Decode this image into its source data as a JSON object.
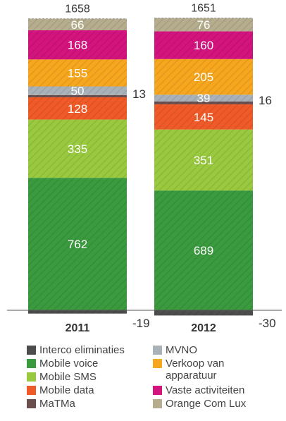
{
  "chart_data": {
    "type": "stacked-bar",
    "categories": [
      "2011",
      "2012"
    ],
    "totals": [
      1658,
      1651
    ],
    "series": [
      {
        "name": "Interco eliminaties",
        "color": "#4d4d4d",
        "values": [
          -19,
          -30
        ],
        "label_outside": true
      },
      {
        "name": "Mobile voice",
        "color": "#3a9a3e",
        "values": [
          762,
          689
        ]
      },
      {
        "name": "Mobile SMS",
        "color": "#99c93f",
        "values": [
          335,
          351
        ]
      },
      {
        "name": "Mobile data",
        "color": "#f05a28",
        "values": [
          128,
          145
        ]
      },
      {
        "name": "MaTMa",
        "color": "#6b4e4e",
        "values": [
          13,
          16
        ],
        "label_outside": true
      },
      {
        "name": "MVNO",
        "color": "#a9b2b8",
        "values": [
          50,
          39
        ]
      },
      {
        "name": "Verkoop van apparatuur",
        "color": "#f6a71e",
        "values": [
          155,
          205
        ]
      },
      {
        "name": "Vaste activiteiten",
        "color": "#d3137e",
        "values": [
          168,
          160
        ]
      },
      {
        "name": "Orange Com Lux",
        "color": "#b5ad8d",
        "values": [
          66,
          76
        ]
      }
    ],
    "legend_placement": "bottom",
    "grid": false
  },
  "legend": {
    "items": [
      {
        "label": "Interco eliminaties",
        "color": "#4d4d4d"
      },
      {
        "label": "MVNO",
        "color": "#a9b2b8"
      },
      {
        "label": "Mobile voice",
        "color": "#3a9a3e"
      },
      {
        "label": "Verkoop van\napparatuur",
        "color": "#f6a71e"
      },
      {
        "label": "Mobile SMS",
        "color": "#99c93f"
      },
      {
        "label": "Mobile data",
        "color": "#f05a28"
      },
      {
        "label": "Vaste activiteiten",
        "color": "#d3137e"
      },
      {
        "label": "MaTMa",
        "color": "#6b4e4e"
      },
      {
        "label": "Orange Com Lux",
        "color": "#b5ad8d"
      }
    ]
  }
}
